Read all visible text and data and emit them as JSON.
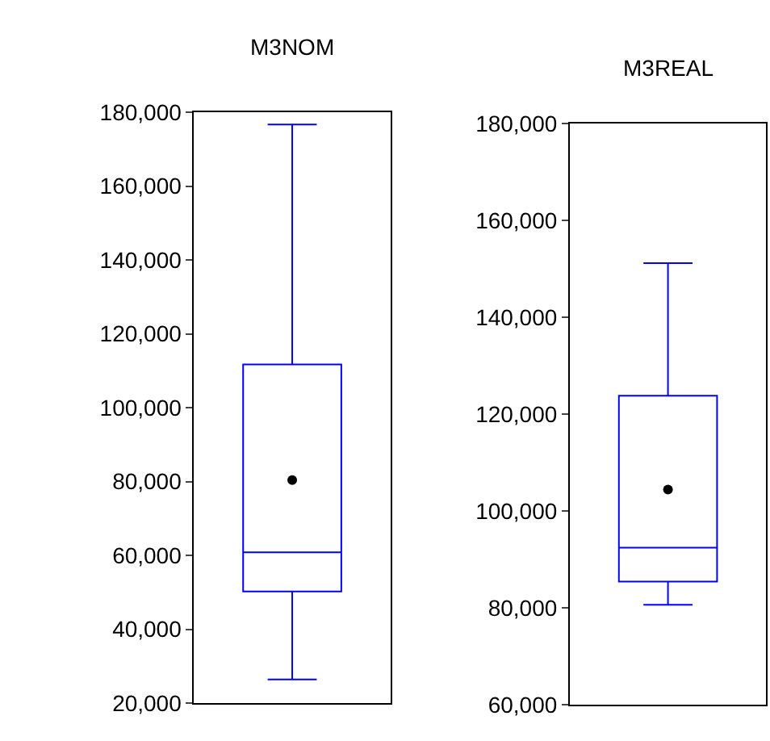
{
  "chart_data": [
    {
      "type": "box",
      "title": "M3NOM",
      "categories": [
        null
      ],
      "ylim": [
        20000,
        180000
      ],
      "yticks": [
        {
          "value": 20000,
          "label": "20,000"
        },
        {
          "value": 40000,
          "label": "40,000"
        },
        {
          "value": 60000,
          "label": "60,000"
        },
        {
          "value": 80000,
          "label": "80,000"
        },
        {
          "value": 100000,
          "label": "100,000"
        },
        {
          "value": 120000,
          "label": "120,000"
        },
        {
          "value": 140000,
          "label": "140,000"
        },
        {
          "value": 160000,
          "label": "160,000"
        },
        {
          "value": 180000,
          "label": "180,000"
        }
      ],
      "color": "#0000ff",
      "tick_labels": "y",
      "boxes": [
        {
          "low": 26400,
          "q1": 50200,
          "median": 60800,
          "q3": 111700,
          "high": 176700,
          "mean": 80400
        }
      ]
    },
    {
      "type": "box",
      "title": "M3REAL",
      "categories": [
        null
      ],
      "ylim": [
        60000,
        180000
      ],
      "yticks": [
        {
          "value": 60000,
          "label": "60,000"
        },
        {
          "value": 80000,
          "label": "80,000"
        },
        {
          "value": 100000,
          "label": "100,000"
        },
        {
          "value": 120000,
          "label": "120,000"
        },
        {
          "value": 140000,
          "label": "140,000"
        },
        {
          "value": 160000,
          "label": "160,000"
        },
        {
          "value": 180000,
          "label": "180,000"
        }
      ],
      "color": "#0000ff",
      "tick_labels": "y",
      "boxes": [
        {
          "low": 80600,
          "q1": 85400,
          "median": 92400,
          "q3": 123800,
          "high": 151200,
          "mean": 104400
        }
      ]
    }
  ]
}
